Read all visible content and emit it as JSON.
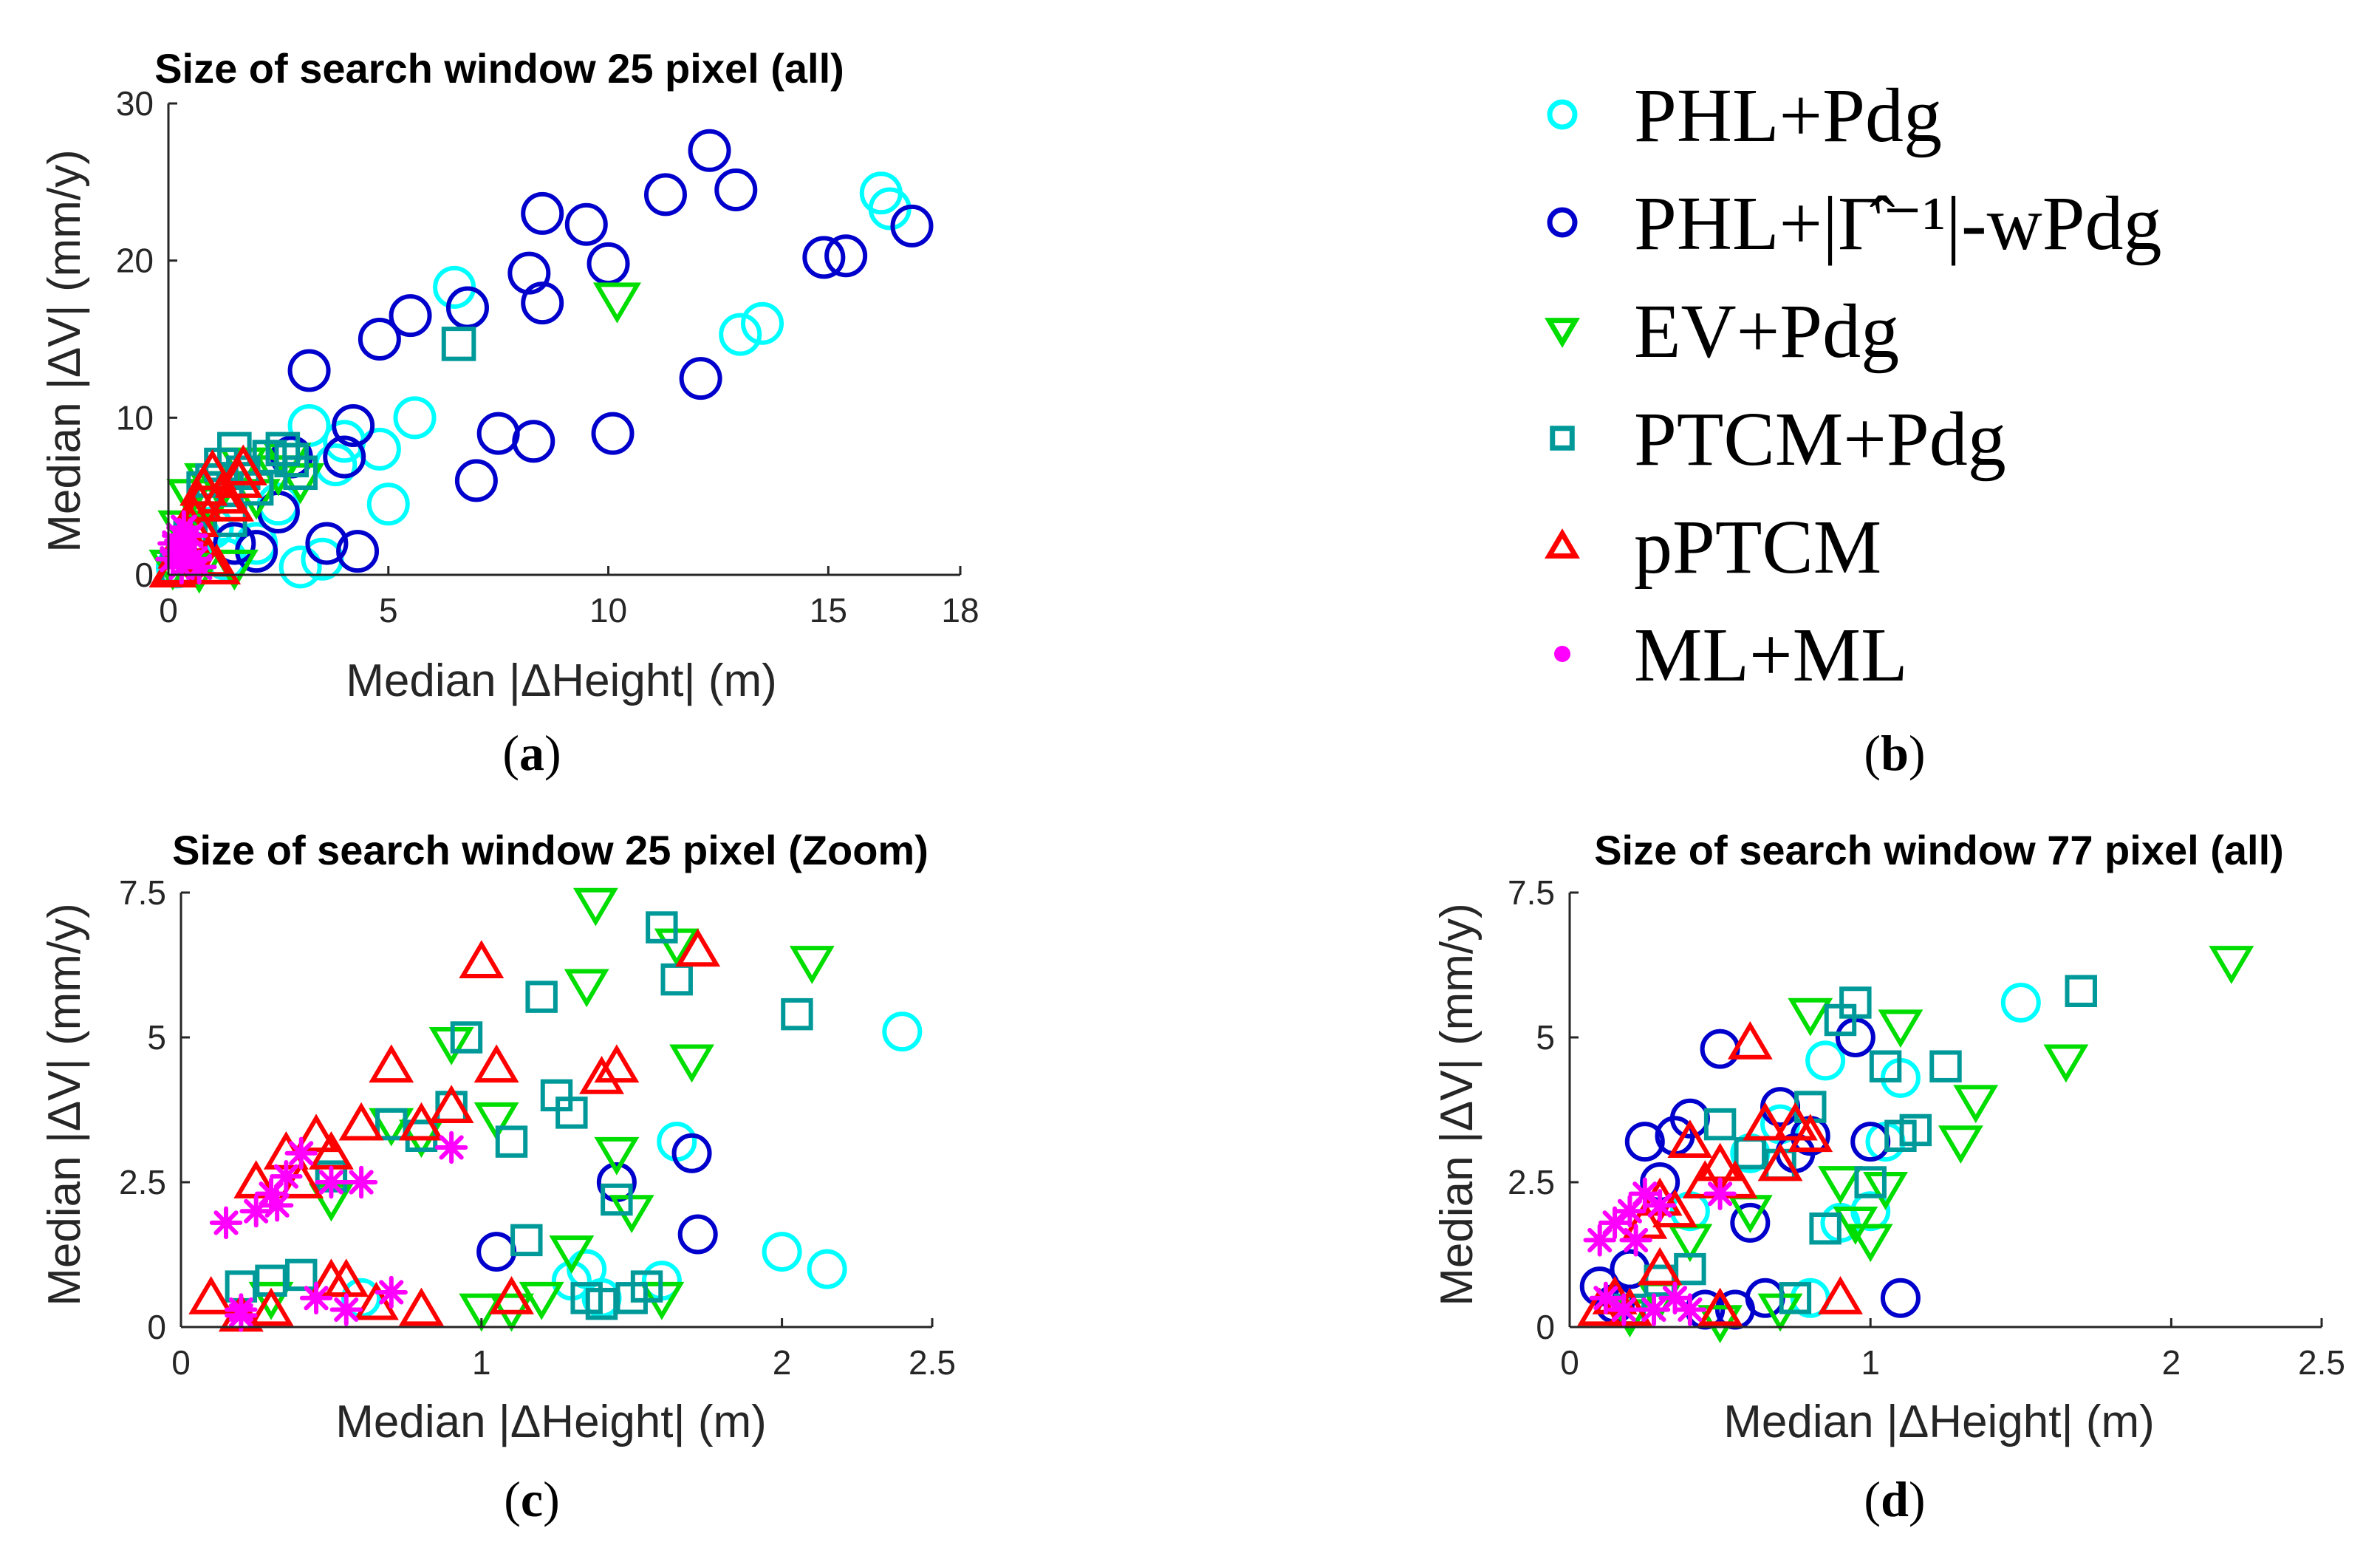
{
  "chart_data": [
    {
      "panel": "a",
      "type": "scatter",
      "title": "Size of search window 25 pixel (all)",
      "xlabel": "Median |ΔHeight| (m)",
      "ylabel": "Median |ΔV| (mm/y)",
      "xlim": [
        0,
        18
      ],
      "ylim": [
        0,
        30
      ],
      "xticks": [
        "0",
        "5",
        "10",
        "15",
        "18"
      ],
      "xtick_values": [
        0,
        5,
        10,
        15,
        18
      ],
      "yticks": [
        "0",
        "10",
        "20",
        "30"
      ],
      "ytick_values": [
        0,
        10,
        20,
        30
      ],
      "series": [
        {
          "name": "PHL+Pdg",
          "marker": "circle",
          "color": "#00ffff",
          "x": [
            0.2,
            0.5,
            0.7,
            1.0,
            1.3,
            2.0,
            2.5,
            3.0,
            3.2,
            3.5,
            3.8,
            4.0,
            4.8,
            5.0,
            5.6,
            6.5,
            6.8,
            13.0,
            13.5,
            16.2,
            16.4
          ],
          "y": [
            0.5,
            1.5,
            2.5,
            3.0,
            1.0,
            2.0,
            4.5,
            0.5,
            9.5,
            1.0,
            7.0,
            8.5,
            8.0,
            4.5,
            10.0,
            18.3,
            17.0,
            15.3,
            16.0,
            24.3,
            23.3
          ]
        },
        {
          "name": "PHL+|Γ̂⁻¹|-wPdg",
          "marker": "circle",
          "color": "#0000cc",
          "x": [
            1.5,
            2.0,
            2.5,
            2.8,
            3.2,
            3.6,
            4.0,
            4.2,
            4.3,
            4.8,
            5.5,
            6.8,
            7.0,
            7.5,
            8.2,
            8.3,
            8.5,
            8.5,
            9.5,
            10.0,
            10.1,
            11.3,
            12.1,
            12.3,
            12.9,
            14.9,
            15.4,
            16.9
          ],
          "y": [
            2.0,
            1.5,
            4.0,
            7.5,
            13.0,
            2.0,
            7.5,
            9.5,
            1.5,
            15.0,
            16.5,
            17.0,
            6.0,
            9.0,
            19.2,
            8.5,
            17.3,
            23.0,
            22.3,
            19.8,
            9.0,
            24.2,
            12.5,
            27.0,
            24.5,
            20.2,
            20.3,
            22.2
          ]
        },
        {
          "name": "EV+Pdg",
          "marker": "triangle-down",
          "color": "#00dd00",
          "x": [
            0.1,
            0.3,
            0.5,
            0.7,
            0.9,
            1.0,
            1.2,
            1.5,
            1.7,
            2.0,
            2.5,
            2.7,
            3.0,
            10.2
          ],
          "y": [
            0.5,
            3.0,
            5.0,
            0.3,
            6.0,
            4.5,
            5.5,
            0.5,
            7.0,
            5.0,
            6.5,
            7.3,
            6.0,
            17.5
          ]
        },
        {
          "name": "PTCM+Pdg",
          "marker": "square",
          "color": "#009999",
          "x": [
            0.2,
            0.5,
            0.8,
            1.0,
            1.2,
            1.4,
            1.5,
            1.7,
            2.0,
            2.3,
            2.6,
            2.8,
            3.0,
            6.6
          ],
          "y": [
            0.5,
            2.5,
            5.5,
            6.0,
            7.0,
            3.5,
            8.0,
            6.5,
            5.5,
            7.5,
            8.0,
            7.3,
            6.5,
            14.7
          ]
        },
        {
          "name": "pPTCM",
          "marker": "triangle-up",
          "color": "#ff0000",
          "x": [
            0.1,
            0.2,
            0.3,
            0.4,
            0.5,
            0.6,
            0.7,
            0.8,
            1.0,
            1.2,
            1.4,
            1.6,
            1.7,
            0.9,
            1.1
          ],
          "y": [
            0.3,
            0.5,
            1.5,
            2.5,
            3.0,
            3.5,
            4.5,
            5.5,
            6.5,
            5.0,
            4.5,
            6.0,
            6.8,
            1.0,
            0.5
          ]
        },
        {
          "name": "ML+ML",
          "marker": "asterisk",
          "color": "#ff00ff",
          "x": [
            0.1,
            0.15,
            0.2,
            0.25,
            0.3,
            0.35,
            0.4,
            0.5,
            0.6,
            0.7
          ],
          "y": [
            1.0,
            2.0,
            1.5,
            2.5,
            0.5,
            3.0,
            2.0,
            2.5,
            1.0,
            0.5
          ]
        }
      ]
    },
    {
      "panel": "b",
      "type": "legend",
      "entries": [
        {
          "label": "PHL+Pdg",
          "marker": "circle",
          "color": "#00ffff"
        },
        {
          "label": "PHL+|Γ̂⁻¹|-wPdg",
          "marker": "circle",
          "color": "#0000cc"
        },
        {
          "label": "EV+Pdg",
          "marker": "triangle-down",
          "color": "#00dd00"
        },
        {
          "label": "PTCM+Pdg",
          "marker": "square",
          "color": "#009999"
        },
        {
          "label": "pPTCM",
          "marker": "triangle-up",
          "color": "#ff0000"
        },
        {
          "label": "ML+ML",
          "marker": "asterisk",
          "color": "#ff00ff"
        }
      ]
    },
    {
      "panel": "c",
      "type": "scatter",
      "title": "Size of search window 25 pixel (Zoom)",
      "xlabel": "Median |ΔHeight| (m)",
      "ylabel": "Median |ΔV| (mm/y)",
      "xlim": [
        0,
        2.5
      ],
      "ylim": [
        0,
        7.5
      ],
      "xticks": [
        "0",
        "1",
        "2",
        "2.5"
      ],
      "xtick_values": [
        0,
        1,
        2,
        2.5
      ],
      "yticks": [
        "0",
        "2.5",
        "5",
        "7.5"
      ],
      "ytick_values": [
        0,
        2.5,
        5,
        7.5
      ],
      "series": [
        {
          "name": "PHL+Pdg",
          "marker": "circle",
          "color": "#00ffff",
          "x": [
            0.6,
            1.3,
            1.35,
            1.4,
            1.6,
            1.65,
            2.0,
            2.15,
            2.4
          ],
          "y": [
            0.5,
            0.8,
            1.0,
            0.5,
            0.8,
            3.2,
            1.3,
            1.0,
            5.1
          ]
        },
        {
          "name": "PHL+|Γ̂⁻¹|-wPdg",
          "marker": "circle",
          "color": "#0000cc",
          "x": [
            1.05,
            1.45,
            1.7,
            1.72
          ],
          "y": [
            1.3,
            2.5,
            3.0,
            1.6
          ]
        },
        {
          "name": "EV+Pdg",
          "marker": "triangle-down",
          "color": "#00dd00",
          "x": [
            0.3,
            0.5,
            0.7,
            0.8,
            0.9,
            1.0,
            1.05,
            1.1,
            1.2,
            1.3,
            1.35,
            1.38,
            1.45,
            1.5,
            1.6,
            1.65,
            1.7,
            2.1
          ],
          "y": [
            0.5,
            2.2,
            3.5,
            3.3,
            4.9,
            0.3,
            3.6,
            0.3,
            0.5,
            1.3,
            5.9,
            7.3,
            3.0,
            2.0,
            0.5,
            6.6,
            4.6,
            6.3
          ]
        },
        {
          "name": "PTCM+Pdg",
          "marker": "square",
          "color": "#009999",
          "x": [
            0.2,
            0.3,
            0.4,
            0.5,
            0.7,
            0.8,
            0.9,
            0.95,
            1.1,
            1.15,
            1.2,
            1.25,
            1.3,
            1.35,
            1.4,
            1.45,
            1.5,
            1.55,
            1.6,
            1.65,
            2.05
          ],
          "y": [
            0.7,
            0.8,
            0.9,
            2.6,
            3.5,
            3.3,
            3.8,
            5.0,
            3.2,
            1.5,
            5.7,
            4.0,
            3.7,
            0.5,
            0.4,
            2.2,
            0.5,
            0.7,
            6.9,
            6.0,
            5.4
          ]
        },
        {
          "name": "pPTCM",
          "marker": "triangle-up",
          "color": "#ff0000",
          "x": [
            0.1,
            0.2,
            0.25,
            0.3,
            0.35,
            0.4,
            0.45,
            0.5,
            0.55,
            0.6,
            0.65,
            0.7,
            0.8,
            0.9,
            1.0,
            1.05,
            1.1,
            1.4,
            1.45,
            1.72,
            0.5,
            0.8
          ],
          "y": [
            0.5,
            0.2,
            2.5,
            0.3,
            3.0,
            2.5,
            3.3,
            3.0,
            0.8,
            3.5,
            0.4,
            4.5,
            3.5,
            3.8,
            6.3,
            4.5,
            0.5,
            4.3,
            4.5,
            6.5,
            0.8,
            0.3
          ]
        },
        {
          "name": "ML+ML",
          "marker": "asterisk",
          "color": "#ff00ff",
          "x": [
            0.15,
            0.2,
            0.25,
            0.3,
            0.32,
            0.35,
            0.4,
            0.45,
            0.5,
            0.55,
            0.6,
            0.7,
            0.9,
            0.2
          ],
          "y": [
            1.8,
            0.3,
            2.0,
            2.3,
            2.1,
            2.6,
            3.0,
            0.5,
            2.5,
            0.3,
            2.5,
            0.6,
            3.1,
            0.2
          ]
        }
      ]
    },
    {
      "panel": "d",
      "type": "scatter",
      "title": "Size of search window 77 pixel (all)",
      "xlabel": "Median |ΔHeight| (m)",
      "ylabel": "Median |ΔV| (mm/y)",
      "xlim": [
        0,
        2.5
      ],
      "ylim": [
        0,
        7.5
      ],
      "xticks": [
        "0",
        "1",
        "2",
        "2.5"
      ],
      "xtick_values": [
        0,
        1,
        2,
        2.5
      ],
      "yticks": [
        "0",
        "2.5",
        "5",
        "7.5"
      ],
      "ytick_values": [
        0,
        2.5,
        5,
        7.5
      ],
      "series": [
        {
          "name": "PHL+Pdg",
          "marker": "circle",
          "color": "#00ffff",
          "x": [
            0.2,
            0.4,
            0.6,
            0.7,
            0.8,
            0.85,
            0.9,
            1.0,
            1.05,
            1.1,
            1.5
          ],
          "y": [
            1.0,
            2.0,
            3.0,
            3.5,
            0.5,
            4.6,
            1.8,
            2.0,
            3.2,
            4.3,
            5.6
          ]
        },
        {
          "name": "PHL+|Γ̂⁻¹|-wPdg",
          "marker": "circle",
          "color": "#0000cc",
          "x": [
            0.1,
            0.15,
            0.2,
            0.25,
            0.3,
            0.35,
            0.4,
            0.45,
            0.5,
            0.55,
            0.6,
            0.65,
            0.7,
            0.75,
            0.8,
            0.95,
            1.0,
            1.1
          ],
          "y": [
            0.7,
            0.4,
            1.0,
            3.2,
            2.5,
            3.3,
            3.6,
            0.3,
            4.8,
            0.3,
            1.8,
            0.5,
            3.8,
            3.0,
            3.3,
            5.0,
            3.2,
            0.5
          ]
        },
        {
          "name": "EV+Pdg",
          "marker": "triangle-down",
          "color": "#00dd00",
          "x": [
            0.2,
            0.3,
            0.4,
            0.5,
            0.6,
            0.7,
            0.8,
            0.9,
            0.95,
            1.0,
            1.05,
            1.1,
            1.3,
            1.35,
            1.65,
            2.2
          ],
          "y": [
            0.2,
            0.5,
            1.5,
            0.1,
            2.0,
            0.3,
            5.4,
            2.5,
            1.8,
            1.5,
            2.4,
            5.2,
            3.2,
            3.9,
            4.6,
            6.3
          ]
        },
        {
          "name": "PTCM+Pdg",
          "marker": "square",
          "color": "#009999",
          "x": [
            0.2,
            0.3,
            0.4,
            0.5,
            0.6,
            0.7,
            0.75,
            0.8,
            0.85,
            0.9,
            0.95,
            1.0,
            1.05,
            1.1,
            1.15,
            1.25,
            1.7
          ],
          "y": [
            0.3,
            0.8,
            1.0,
            3.5,
            3.0,
            2.8,
            0.5,
            3.8,
            1.7,
            5.3,
            5.6,
            2.5,
            4.5,
            3.3,
            3.4,
            4.5,
            5.8
          ]
        },
        {
          "name": "pPTCM",
          "marker": "triangle-up",
          "color": "#ff0000",
          "x": [
            0.1,
            0.15,
            0.2,
            0.25,
            0.3,
            0.35,
            0.4,
            0.45,
            0.5,
            0.55,
            0.6,
            0.65,
            0.7,
            0.75,
            0.8,
            0.9,
            0.3,
            0.5
          ],
          "y": [
            0.3,
            0.5,
            0.3,
            1.8,
            2.2,
            2.0,
            3.2,
            2.5,
            2.8,
            2.5,
            4.9,
            3.5,
            2.8,
            3.5,
            3.3,
            0.5,
            1.0,
            0.3
          ]
        },
        {
          "name": "ML+ML",
          "marker": "asterisk",
          "color": "#ff00ff",
          "x": [
            0.1,
            0.12,
            0.15,
            0.18,
            0.2,
            0.22,
            0.25,
            0.28,
            0.3,
            0.35,
            0.4,
            0.5
          ],
          "y": [
            1.5,
            0.5,
            1.8,
            0.3,
            2.0,
            1.5,
            2.3,
            0.3,
            2.1,
            0.5,
            0.3,
            2.3
          ]
        }
      ]
    }
  ],
  "panel_labels": {
    "a": "(a)",
    "b": "(b)",
    "c": "(c)",
    "d": "(d)"
  }
}
